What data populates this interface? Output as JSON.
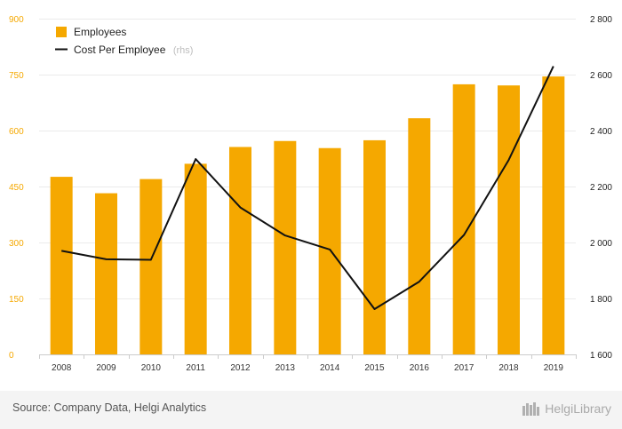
{
  "chart_data": {
    "type": "bar+line",
    "categories": [
      "2008",
      "2009",
      "2010",
      "2011",
      "2012",
      "2013",
      "2014",
      "2015",
      "2016",
      "2017",
      "2018",
      "2019"
    ],
    "series": [
      {
        "name": "Employees",
        "type": "bar",
        "axis": "left",
        "color": "#f5a800",
        "values": [
          476,
          432,
          470,
          511,
          556,
          572,
          553,
          574,
          633,
          724,
          721,
          745
        ]
      },
      {
        "name": "Cost Per Employee",
        "suffix": "(rhs)",
        "type": "line",
        "axis": "right",
        "color": "#111111",
        "values": [
          1970,
          1940,
          1938,
          2298,
          2125,
          2025,
          1975,
          1762,
          1860,
          2027,
          2295,
          2630
        ]
      }
    ],
    "left_axis": {
      "min": 0,
      "max": 900,
      "ticks": [
        "0",
        "150",
        "300",
        "450",
        "600",
        "750",
        "900"
      ],
      "color": "#f5a800"
    },
    "right_axis": {
      "min": 1600,
      "max": 2800,
      "ticks": [
        "1 600",
        "1 800",
        "2 000",
        "2 200",
        "2 400",
        "2 600",
        "2 800"
      ]
    },
    "grid": true,
    "legend_position": "top-left"
  },
  "footer": {
    "source": "Source: Company Data, Helgi Analytics",
    "brand_name": "HelgiLibrary"
  }
}
